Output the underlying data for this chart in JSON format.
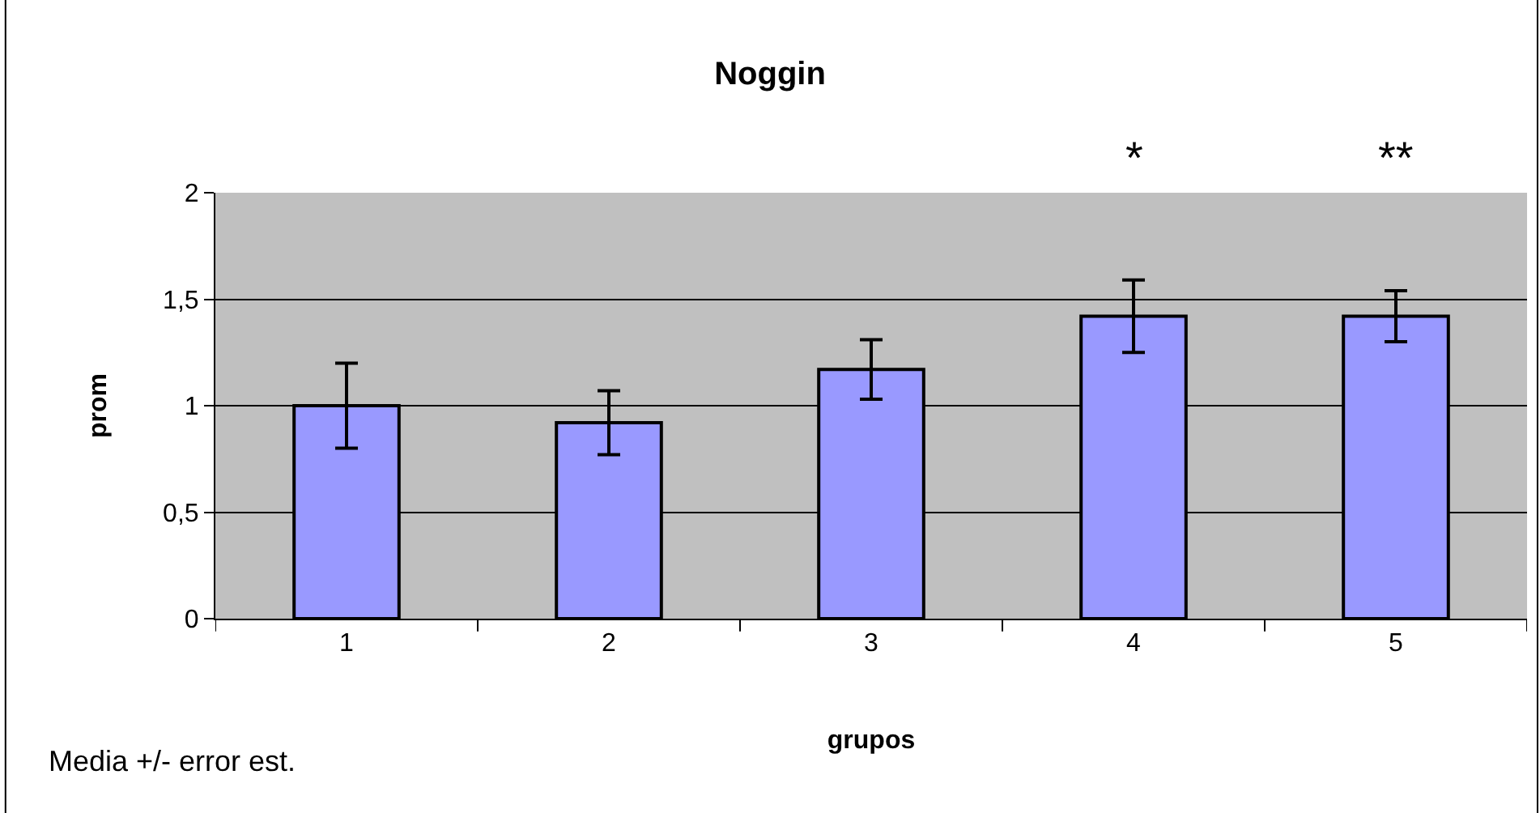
{
  "chart_data": {
    "type": "bar",
    "title": "Noggin",
    "xlabel": "grupos",
    "ylabel": "prom",
    "categories": [
      "1",
      "2",
      "3",
      "4",
      "5"
    ],
    "values": [
      1.0,
      0.92,
      1.17,
      1.42,
      1.42
    ],
    "errors": [
      0.2,
      0.15,
      0.14,
      0.17,
      0.12
    ],
    "color": "#9999ff",
    "ylim": [
      0,
      2
    ],
    "yticks": [
      0,
      {
        "value": 0.5,
        "label": "0,5"
      },
      1,
      {
        "value": 1.5,
        "label": "1,5"
      },
      2
    ],
    "grid": "y",
    "legend": false,
    "annotations": [
      "*",
      "**",
      "Media +/- error est."
    ]
  }
}
